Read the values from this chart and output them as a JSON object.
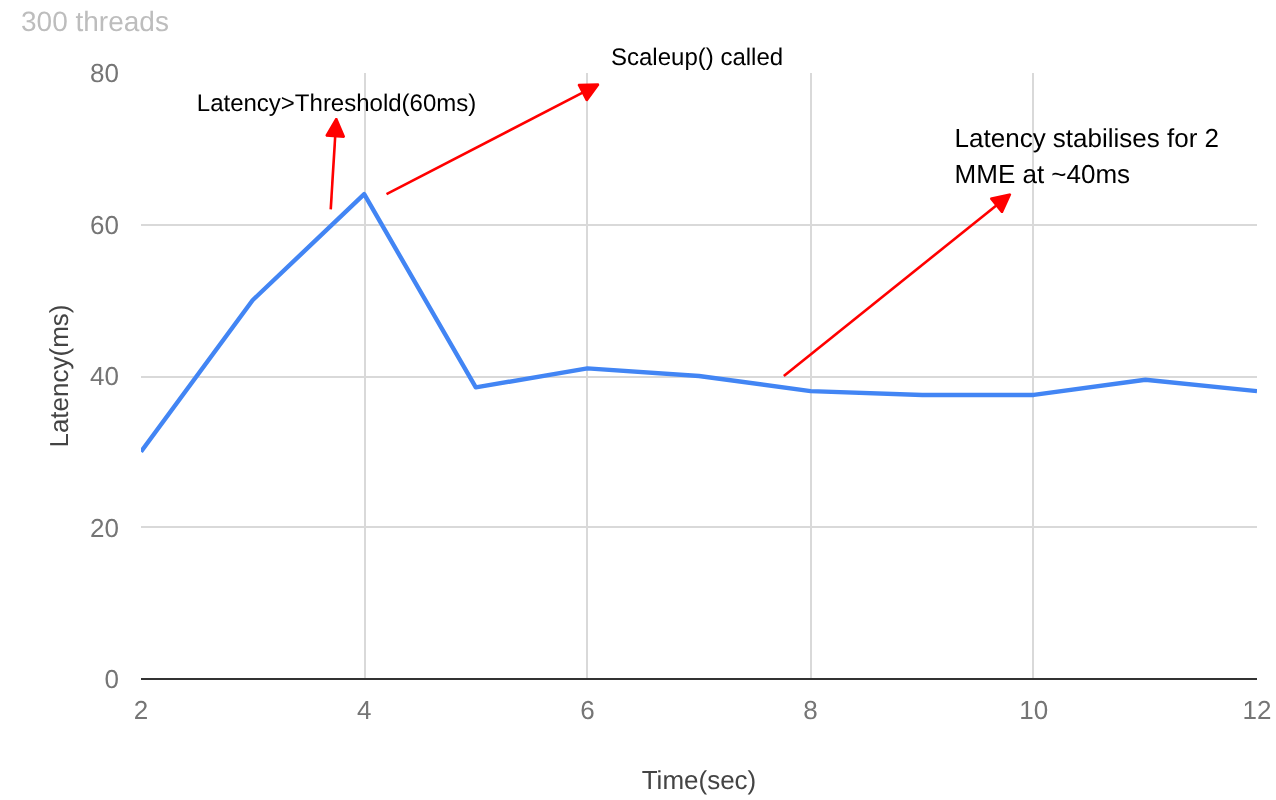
{
  "chart_data": {
    "type": "line",
    "title": "300 threads",
    "xlabel": "Time(sec)",
    "ylabel": "Latency(ms)",
    "x": [
      2,
      3,
      4,
      5,
      6,
      7,
      8,
      9,
      10,
      11,
      12
    ],
    "series": [
      {
        "color": "#4285f4",
        "values": [
          30,
          50,
          64,
          38.5,
          41,
          40,
          38,
          37.5,
          37.5,
          39.5,
          38
        ]
      }
    ],
    "xlim": [
      2,
      12
    ],
    "xticks": [
      2,
      4,
      6,
      8,
      10,
      12
    ],
    "ylim": [
      0,
      80
    ],
    "yticks": [
      0,
      20,
      40,
      60,
      80
    ],
    "grid": true,
    "line_style": "solid",
    "annotations": [
      {
        "text": "Latency>Threshold(60ms)",
        "x": 3.7,
        "y": 62
      },
      "Scaleup() called",
      {
        "text": "Latency stabilises for 2\nMME at ~40ms",
        "x": 7.76,
        "y": 40
      }
    ]
  }
}
